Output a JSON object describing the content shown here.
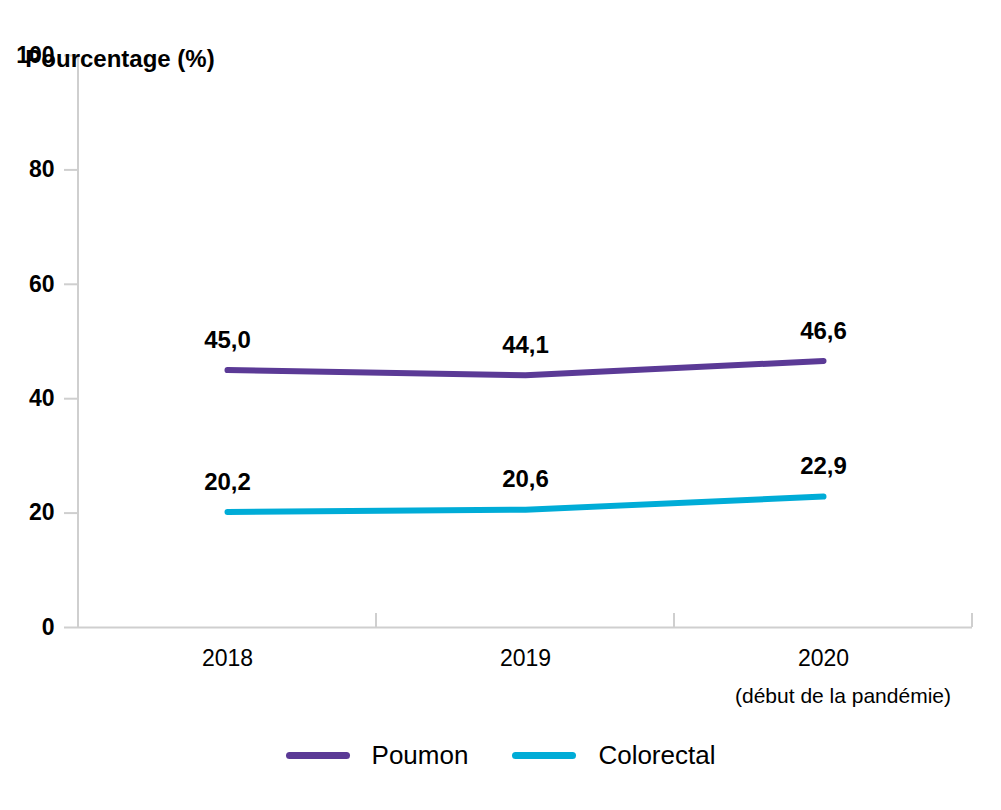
{
  "chart_data": {
    "type": "line",
    "y_label": "Pourcentage (%)",
    "categories": [
      "2018",
      "2019",
      "2020"
    ],
    "annotations": [
      {
        "x": "2020",
        "text": "(début de la pandémie)"
      }
    ],
    "series": [
      {
        "name": "Poumon",
        "color": "#5b3a96",
        "values": [
          45.0,
          44.1,
          46.6
        ],
        "value_labels": [
          "45,0",
          "44,1",
          "46,6"
        ]
      },
      {
        "name": "Colorectal",
        "color": "#00acd7",
        "values": [
          20.2,
          20.6,
          22.9
        ],
        "value_labels": [
          "20,2",
          "20,6",
          "22,9"
        ]
      }
    ],
    "ylim": [
      0,
      100
    ],
    "yticks": [
      0,
      20,
      40,
      60,
      80,
      100
    ],
    "grid": false,
    "data_labels": true,
    "legend": "bottom"
  }
}
